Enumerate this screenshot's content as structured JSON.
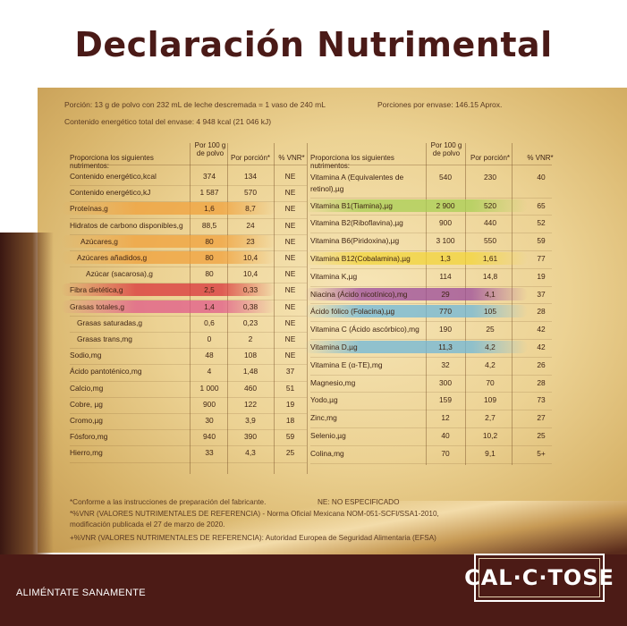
{
  "title": "Declaración Nutrimental",
  "meta": {
    "serving": "Porción: 13 g de polvo con 232 mL de leche descremada = 1 vaso de 240 mL",
    "servings_per": "Porciones por envase: 146.15 Aprox.",
    "energy_total": "Contenido energético total del envase: 4 948 kcal (21 046 kJ)"
  },
  "left_table": {
    "headers": {
      "nutrient": "Proporciona los siguientes nutrimentos:",
      "per100": "Por 100 g de polvo",
      "portion": "Por porción*",
      "vnr": "% VNR*"
    },
    "rows": [
      {
        "name": "Contenido energético,kcal",
        "per100": "374",
        "portion": "134",
        "vnr": "NE"
      },
      {
        "name": "Contenido energético,kJ",
        "per100": "1 587",
        "portion": "570",
        "vnr": "NE"
      },
      {
        "name": "Proteínas,g",
        "per100": "1,6",
        "portion": "8,7",
        "vnr": "NE"
      },
      {
        "name": "Hidratos de carbono disponibles,g",
        "per100": "88,5",
        "portion": "24",
        "vnr": "NE"
      },
      {
        "name": "Azúcares,g",
        "per100": "80",
        "portion": "23",
        "vnr": "NE"
      },
      {
        "name": "Azúcares añadidos,g",
        "per100": "80",
        "portion": "10,4",
        "vnr": "NE"
      },
      {
        "name": "Azúcar (sacarosa),g",
        "per100": "80",
        "portion": "10,4",
        "vnr": "NE"
      },
      {
        "name": "Fibra dietética,g",
        "per100": "2,5",
        "portion": "0,33",
        "vnr": "NE"
      },
      {
        "name": "Grasas totales,g",
        "per100": "1,4",
        "portion": "0,38",
        "vnr": "NE"
      },
      {
        "name": "Grasas saturadas,g",
        "per100": "0,6",
        "portion": "0,23",
        "vnr": "NE"
      },
      {
        "name": "Grasas trans,mg",
        "per100": "0",
        "portion": "2",
        "vnr": "NE"
      },
      {
        "name": "Sodio,mg",
        "per100": "48",
        "portion": "108",
        "vnr": "NE"
      },
      {
        "name": "Ácido pantoténico,mg",
        "per100": "4",
        "portion": "1,48",
        "vnr": "37"
      },
      {
        "name": "Calcio,mg",
        "per100": "1 000",
        "portion": "460",
        "vnr": "51"
      },
      {
        "name": "Cobre, µg",
        "per100": "900",
        "portion": "122",
        "vnr": "19"
      },
      {
        "name": "Cromo,µg",
        "per100": "30",
        "portion": "3,9",
        "vnr": "18"
      },
      {
        "name": "Fósforo,mg",
        "per100": "940",
        "portion": "390",
        "vnr": "59"
      },
      {
        "name": "Hierro,mg",
        "per100": "33",
        "portion": "4,3",
        "vnr": "25"
      }
    ]
  },
  "right_table": {
    "headers": {
      "nutrient": "Proporciona los siguientes nutrimentos:",
      "per100": "Por 100 g de polvo",
      "portion": "Por porción*",
      "vnr": "% VNR*"
    },
    "rows": [
      {
        "name": "Vitamina A (Equivalentes de",
        "name2": "retinol),µg",
        "per100": "540",
        "portion": "230",
        "vnr": "40"
      },
      {
        "name": "Vitamina B1(Tiamina),µg",
        "per100": "2 900",
        "portion": "520",
        "vnr": "65"
      },
      {
        "name": "Vitamina B2(Riboflavina),µg",
        "per100": "900",
        "portion": "440",
        "vnr": "52"
      },
      {
        "name": "Vitamina B6(Piridoxina),µg",
        "per100": "3 100",
        "portion": "550",
        "vnr": "59"
      },
      {
        "name": "Vitamina B12(Cobalamina),µg",
        "per100": "1,3",
        "portion": "1,61",
        "vnr": "77"
      },
      {
        "name": "Vitamina K,µg",
        "per100": "114",
        "portion": "14,8",
        "vnr": "19"
      },
      {
        "name": "Niacina (Ácido nicotínico),mg",
        "per100": "29",
        "portion": "4,1",
        "vnr": "37"
      },
      {
        "name": "Ácido fólico (Folacina),µg",
        "per100": "770",
        "portion": "105",
        "vnr": "28"
      },
      {
        "name": "Vitamina C (Ácido ascórbico),mg",
        "per100": "190",
        "portion": "25",
        "vnr": "42"
      },
      {
        "name": "Vitamina D,µg",
        "per100": "11,3",
        "portion": "4,2",
        "vnr": "42"
      },
      {
        "name": "Vitamina E (α-TE),mg",
        "per100": "32",
        "portion": "4,2",
        "vnr": "26"
      },
      {
        "name": "Magnesio,mg",
        "per100": "300",
        "portion": "70",
        "vnr": "28"
      },
      {
        "name": "Yodo,µg",
        "per100": "159",
        "portion": "109",
        "vnr": "73"
      },
      {
        "name": "Zinc,mg",
        "per100": "12",
        "portion": "2,7",
        "vnr": "27"
      },
      {
        "name": "Selenio,µg",
        "per100": "40",
        "portion": "10,2",
        "vnr": "25"
      },
      {
        "name": "Colina,mg",
        "per100": "70",
        "portion": "9,1",
        "vnr": "5+"
      }
    ]
  },
  "footnotes": {
    "f1": "*Conforme a las instrucciones de preparación del fabricante.",
    "f1b": "NE: NO ESPECIFICADO",
    "f2": "*%VNR (VALORES NUTRIMENTALES DE REFERENCIA) - Norma Oficial Mexicana NOM-051-SCFI/SSA1-2010,",
    "f3": "modificación publicada el 27 de marzo de 2020.",
    "f4": "+%VNR (VALORES NUTRIMENTALES DE REFERENCIA): Autoridad Europea de Seguridad Alimentaria (EFSA)"
  },
  "footer": {
    "slogan": "ALIMÉNTATE SANAMENTE",
    "logo": "CAL·C·TOSE"
  },
  "colors": {
    "title": "#4a1a17",
    "footer": "#4c1b16",
    "orange": "#f0a13c",
    "red": "#d9343b",
    "pink": "#e05a8a",
    "green": "#a9cf54",
    "yellow": "#f2d43a",
    "purple": "#9b4a9a",
    "blue": "#6fb7d8"
  }
}
